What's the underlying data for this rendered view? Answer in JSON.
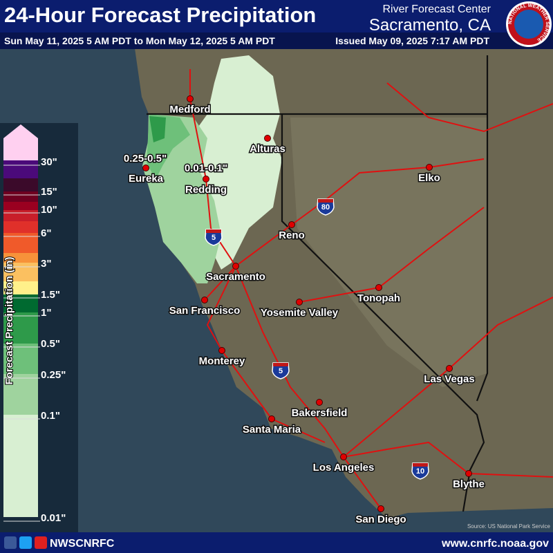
{
  "header": {
    "title": "24-Hour Forecast Precipitation",
    "valid_period": "Sun May 11, 2025 5 AM PDT to Mon May 12, 2025 5 AM PDT",
    "agency": "River Forecast Center",
    "office": "Sacramento, CA",
    "issued": "Issued May 09, 2025 7:17 AM PDT",
    "logo_text": "NATIONAL WEATHER SERVICE"
  },
  "legend": {
    "title": "Forecast Precipitation (in)",
    "labels": [
      "30\"",
      "15\"",
      "10\"",
      "6\"",
      "3\"",
      "1.5\"",
      "1\"",
      "0.5\"",
      "0.25\"",
      "0.1\"",
      "0.01\""
    ]
  },
  "map": {
    "annotations": [
      "0.25-0.5\"",
      "0.01-0.1\""
    ],
    "cities": [
      "Medford",
      "Alturas",
      "Eureka",
      "Redding",
      "Elko",
      "Reno",
      "Sacramento",
      "San Francisco",
      "Yosemite Valley",
      "Tonopah",
      "Monterey",
      "Las Vegas",
      "Bakersfield",
      "Santa Maria",
      "Los Angeles",
      "Blythe",
      "San Diego"
    ],
    "shields": [
      "5",
      "5",
      "80",
      "10"
    ],
    "source": "Source: US National Park Service"
  },
  "footer": {
    "social": "NWSCNRFC",
    "url": "www.cnrfc.noaa.gov"
  }
}
